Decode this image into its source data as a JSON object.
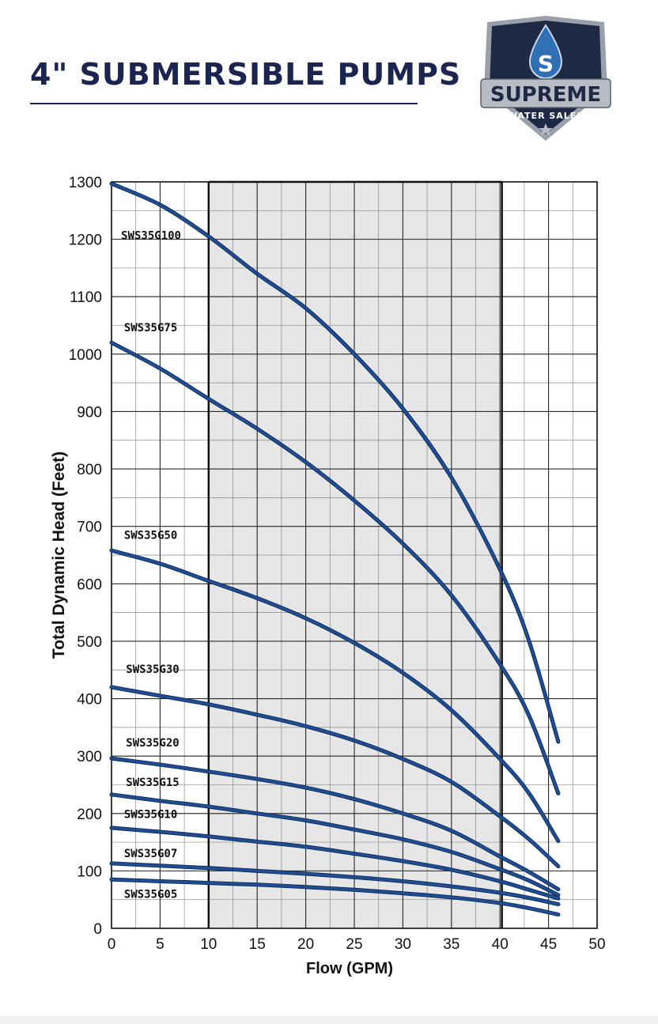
{
  "header": {
    "title": "4\" SUBMERSIBLE PUMPS",
    "logo_main": "SUPREME",
    "logo_sub": "WATER SALES",
    "logo_letter": "S"
  },
  "colors": {
    "title": "#1b2550",
    "curve": "#1f4e94",
    "shaded_region": "#e6e6e6",
    "grid": "#2a2a2a",
    "logo_dark": "#1e2a45",
    "logo_silver": "#b8bcc4"
  },
  "chart_data": {
    "type": "line",
    "title": "",
    "xlabel": "Flow (GPM)",
    "ylabel": "Total Dynamic Head (Feet)",
    "xlim": [
      0,
      50
    ],
    "ylim": [
      0,
      1300
    ],
    "x_ticks": [
      0,
      5,
      10,
      15,
      20,
      25,
      30,
      35,
      40,
      45,
      50
    ],
    "y_ticks": [
      0,
      100,
      200,
      300,
      400,
      500,
      600,
      700,
      800,
      900,
      1000,
      1100,
      1200,
      1300
    ],
    "grid": true,
    "shaded_range": [
      10,
      40.2
    ],
    "series": [
      {
        "name": "SWS35G100",
        "label_at": [
          0.5,
          1200
        ],
        "points": [
          [
            0,
            1297
          ],
          [
            5,
            1260
          ],
          [
            10,
            1205
          ],
          [
            15,
            1140
          ],
          [
            20,
            1080
          ],
          [
            25,
            1000
          ],
          [
            30,
            905
          ],
          [
            35,
            785
          ],
          [
            40,
            625
          ],
          [
            43,
            500
          ],
          [
            46,
            325
          ]
        ]
      },
      {
        "name": "SWS35G75",
        "label_at": [
          0.8,
          1040
        ],
        "points": [
          [
            0,
            1020
          ],
          [
            5,
            975
          ],
          [
            10,
            922
          ],
          [
            15,
            870
          ],
          [
            20,
            812
          ],
          [
            25,
            745
          ],
          [
            30,
            670
          ],
          [
            35,
            580
          ],
          [
            40,
            460
          ],
          [
            43,
            370
          ],
          [
            46,
            235
          ]
        ]
      },
      {
        "name": "SWS35G50",
        "label_at": [
          0.8,
          678
        ],
        "points": [
          [
            0,
            658
          ],
          [
            5,
            635
          ],
          [
            10,
            605
          ],
          [
            15,
            575
          ],
          [
            20,
            540
          ],
          [
            25,
            497
          ],
          [
            30,
            445
          ],
          [
            35,
            380
          ],
          [
            40,
            295
          ],
          [
            43,
            235
          ],
          [
            46,
            152
          ]
        ]
      },
      {
        "name": "SWS35G30",
        "label_at": [
          1.0,
          445
        ],
        "points": [
          [
            0,
            420
          ],
          [
            5,
            405
          ],
          [
            10,
            390
          ],
          [
            15,
            372
          ],
          [
            20,
            352
          ],
          [
            25,
            327
          ],
          [
            30,
            295
          ],
          [
            35,
            255
          ],
          [
            40,
            195
          ],
          [
            43,
            155
          ],
          [
            46,
            108
          ]
        ]
      },
      {
        "name": "SWS35G20",
        "label_at": [
          1.0,
          317
        ],
        "points": [
          [
            0,
            296
          ],
          [
            5,
            285
          ],
          [
            10,
            273
          ],
          [
            15,
            260
          ],
          [
            20,
            245
          ],
          [
            25,
            225
          ],
          [
            30,
            200
          ],
          [
            35,
            170
          ],
          [
            40,
            125
          ],
          [
            43,
            98
          ],
          [
            46,
            68
          ]
        ]
      },
      {
        "name": "SWS35G15",
        "label_at": [
          1.0,
          248
        ],
        "points": [
          [
            0,
            233
          ],
          [
            5,
            222
          ],
          [
            10,
            212
          ],
          [
            15,
            200
          ],
          [
            20,
            188
          ],
          [
            25,
            172
          ],
          [
            30,
            155
          ],
          [
            35,
            133
          ],
          [
            40,
            103
          ],
          [
            43,
            83
          ],
          [
            46,
            58
          ]
        ]
      },
      {
        "name": "SWS35G10",
        "label_at": [
          0.8,
          192
        ],
        "points": [
          [
            0,
            175
          ],
          [
            5,
            168
          ],
          [
            10,
            160
          ],
          [
            15,
            151
          ],
          [
            20,
            142
          ],
          [
            25,
            130
          ],
          [
            30,
            117
          ],
          [
            35,
            102
          ],
          [
            40,
            82
          ],
          [
            43,
            67
          ],
          [
            46,
            52
          ]
        ]
      },
      {
        "name": "SWS35G07",
        "label_at": [
          0.8,
          124
        ],
        "points": [
          [
            0,
            113
          ],
          [
            5,
            109
          ],
          [
            10,
            105
          ],
          [
            15,
            100
          ],
          [
            20,
            95
          ],
          [
            25,
            89
          ],
          [
            30,
            82
          ],
          [
            35,
            73
          ],
          [
            40,
            62
          ],
          [
            43,
            53
          ],
          [
            46,
            42
          ]
        ]
      },
      {
        "name": "SWS35G05",
        "label_at": [
          0.8,
          53
        ],
        "points": [
          [
            0,
            85
          ],
          [
            5,
            82
          ],
          [
            10,
            79
          ],
          [
            15,
            76
          ],
          [
            20,
            72
          ],
          [
            25,
            67
          ],
          [
            30,
            61
          ],
          [
            35,
            54
          ],
          [
            40,
            44
          ],
          [
            43,
            35
          ],
          [
            46,
            24
          ]
        ]
      }
    ]
  }
}
